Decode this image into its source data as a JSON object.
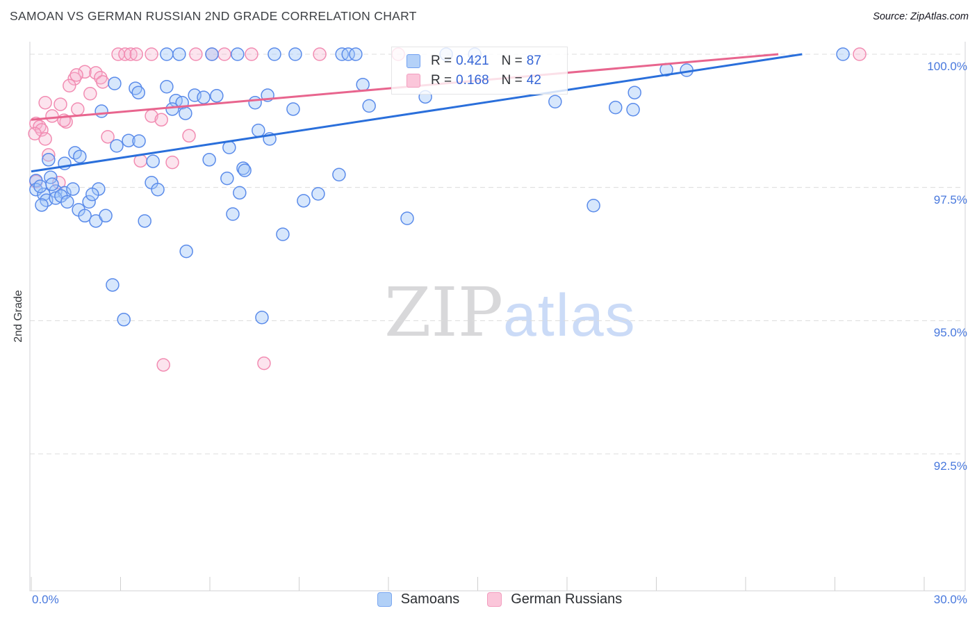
{
  "header": {
    "title": "SAMOAN VS GERMAN RUSSIAN 2ND GRADE CORRELATION CHART",
    "source": "Source: ZipAtlas.com"
  },
  "watermark": {
    "zip": "ZIP",
    "atlas": "atlas"
  },
  "legend_box": {
    "series": [
      {
        "r_label": "R =",
        "r_value": "0.421",
        "n_label": "N =",
        "n_value": "87",
        "swatch_fill": "#b4d1f8",
        "swatch_border": "#70a0f2"
      },
      {
        "r_label": "R =",
        "r_value": "0.168",
        "n_label": "N =",
        "n_value": "42",
        "swatch_fill": "#fbc6da",
        "swatch_border": "#f29cbe"
      }
    ]
  },
  "bottom_legend": {
    "items": [
      {
        "label": "Samoans",
        "swatch_fill": "#b1d0f7",
        "swatch_border": "#7aa7f0"
      },
      {
        "label": "German Russians",
        "swatch_fill": "#fbc6da",
        "swatch_border": "#f29cbe"
      }
    ]
  },
  "y_axis": {
    "title": "2nd Grade",
    "ticks": [
      {
        "label": "100.0%",
        "value": 100.0
      },
      {
        "label": "97.5%",
        "value": 97.5
      },
      {
        "label": "95.0%",
        "value": 95.0
      },
      {
        "label": "92.5%",
        "value": 92.5
      }
    ]
  },
  "x_axis": {
    "min_label": "0.0%",
    "max_label": "30.0%",
    "min": 0,
    "max": 30,
    "tick_step": 3
  },
  "chart_data": {
    "type": "scatter",
    "title": "SAMOAN VS GERMAN RUSSIAN 2ND GRADE CORRELATION CHART",
    "xlabel": "",
    "ylabel": "2nd Grade",
    "xlim": [
      0,
      30
    ],
    "ylim": [
      92.5,
      100
    ],
    "grid": true,
    "legend_position": "top-center",
    "series": [
      {
        "name": "Samoans",
        "R": 0.421,
        "N": 87,
        "point_stroke": "#5a8bea",
        "point_fill": "rgba(160,197,248,0.42)",
        "points": [
          [
            4.55,
            100
          ],
          [
            4.97,
            100
          ],
          [
            6.07,
            100
          ],
          [
            6.93,
            100
          ],
          [
            8.17,
            100
          ],
          [
            8.87,
            100
          ],
          [
            10.44,
            100
          ],
          [
            10.65,
            100
          ],
          [
            10.9,
            100
          ],
          [
            13.94,
            100
          ],
          [
            14.9,
            100
          ],
          [
            27.27,
            100
          ],
          [
            2.8,
            99.45
          ],
          [
            3.5,
            99.36
          ],
          [
            3.6,
            99.28
          ],
          [
            4.55,
            99.39
          ],
          [
            4.86,
            99.13
          ],
          [
            5.07,
            99.09
          ],
          [
            5.49,
            99.23
          ],
          [
            5.79,
            99.19
          ],
          [
            6.23,
            99.22
          ],
          [
            7.52,
            99.09
          ],
          [
            7.94,
            99.23
          ],
          [
            8.8,
            98.97
          ],
          [
            2.36,
            98.93
          ],
          [
            4.74,
            98.97
          ],
          [
            5.18,
            98.89
          ],
          [
            11.14,
            99.43
          ],
          [
            11.35,
            99.03
          ],
          [
            13.24,
            99.2
          ],
          [
            17.6,
            99.11
          ],
          [
            19.63,
            99.0
          ],
          [
            20.27,
            99.28
          ],
          [
            20.22,
            98.96
          ],
          [
            21.34,
            99.71
          ],
          [
            22.02,
            99.7
          ],
          [
            3.27,
            98.38
          ],
          [
            3.62,
            98.37
          ],
          [
            2.87,
            98.28
          ],
          [
            6.65,
            98.25
          ],
          [
            7.63,
            98.57
          ],
          [
            8.01,
            98.41
          ],
          [
            0.58,
            98.02
          ],
          [
            1.12,
            97.95
          ],
          [
            1.47,
            98.15
          ],
          [
            1.63,
            98.08
          ],
          [
            4.09,
            97.99
          ],
          [
            5.98,
            98.02
          ],
          [
            7.12,
            97.86
          ],
          [
            0.16,
            97.63
          ],
          [
            0.65,
            97.69
          ],
          [
            0.16,
            97.46
          ],
          [
            0.42,
            97.37
          ],
          [
            0.82,
            97.43
          ],
          [
            1.12,
            97.4
          ],
          [
            0.51,
            97.26
          ],
          [
            0.82,
            97.3
          ],
          [
            1.4,
            97.47
          ],
          [
            1.0,
            97.34
          ],
          [
            2.26,
            97.47
          ],
          [
            1.94,
            97.23
          ],
          [
            1.59,
            97.08
          ],
          [
            1.8,
            96.97
          ],
          [
            2.17,
            96.87
          ],
          [
            2.5,
            96.97
          ],
          [
            3.81,
            96.87
          ],
          [
            4.04,
            97.59
          ],
          [
            4.25,
            97.46
          ],
          [
            0.3,
            97.52
          ],
          [
            0.7,
            97.56
          ],
          [
            1.21,
            97.23
          ],
          [
            2.05,
            97.37
          ],
          [
            0.35,
            97.17
          ],
          [
            6.58,
            97.67
          ],
          [
            7.17,
            97.82
          ],
          [
            7.0,
            97.4
          ],
          [
            6.77,
            97.0
          ],
          [
            8.45,
            96.62
          ],
          [
            9.15,
            97.25
          ],
          [
            9.64,
            97.38
          ],
          [
            10.34,
            97.74
          ],
          [
            5.21,
            96.3
          ],
          [
            2.73,
            95.67
          ],
          [
            3.11,
            95.02
          ],
          [
            7.75,
            95.06
          ],
          [
            12.63,
            96.92
          ],
          [
            18.89,
            97.16
          ]
        ]
      },
      {
        "name": "German Russians",
        "R": 0.168,
        "N": 42,
        "point_stroke": "#f28cb2",
        "point_fill": "rgba(247,178,205,0.35)",
        "points": [
          [
            2.92,
            100
          ],
          [
            3.15,
            100
          ],
          [
            3.34,
            100
          ],
          [
            3.53,
            100
          ],
          [
            4.04,
            100
          ],
          [
            5.53,
            100
          ],
          [
            6.07,
            100
          ],
          [
            6.49,
            100
          ],
          [
            7.4,
            100
          ],
          [
            9.69,
            100
          ],
          [
            12.33,
            100
          ],
          [
            27.83,
            100
          ],
          [
            1.8,
            99.67
          ],
          [
            2.17,
            99.65
          ],
          [
            2.33,
            99.56
          ],
          [
            1.45,
            99.54
          ],
          [
            1.28,
            99.41
          ],
          [
            1.98,
            99.26
          ],
          [
            1.52,
            99.61
          ],
          [
            2.4,
            99.48
          ],
          [
            0.47,
            99.09
          ],
          [
            0.98,
            99.06
          ],
          [
            1.56,
            98.97
          ],
          [
            0.7,
            98.84
          ],
          [
            1.17,
            98.73
          ],
          [
            4.04,
            98.84
          ],
          [
            4.37,
            98.77
          ],
          [
            1.1,
            98.76
          ],
          [
            0.16,
            98.7
          ],
          [
            0.28,
            98.64
          ],
          [
            0.35,
            98.58
          ],
          [
            0.12,
            98.51
          ],
          [
            0.47,
            98.41
          ],
          [
            2.57,
            98.45
          ],
          [
            5.3,
            98.47
          ],
          [
            0.58,
            98.11
          ],
          [
            3.67,
            98.0
          ],
          [
            4.74,
            97.97
          ],
          [
            0.93,
            97.59
          ],
          [
            0.16,
            97.61
          ],
          [
            4.44,
            94.17
          ],
          [
            7.82,
            94.2
          ]
        ]
      }
    ],
    "trend_lines": [
      {
        "name": "Samoans",
        "color": "#2a6fdb",
        "x1": 0,
        "y1": 97.8,
        "x2": 25.9,
        "y2": 100.0
      },
      {
        "name": "German Russians",
        "color": "#e8658e",
        "x1": 0,
        "y1": 98.77,
        "x2": 25.1,
        "y2": 100.0
      }
    ]
  }
}
